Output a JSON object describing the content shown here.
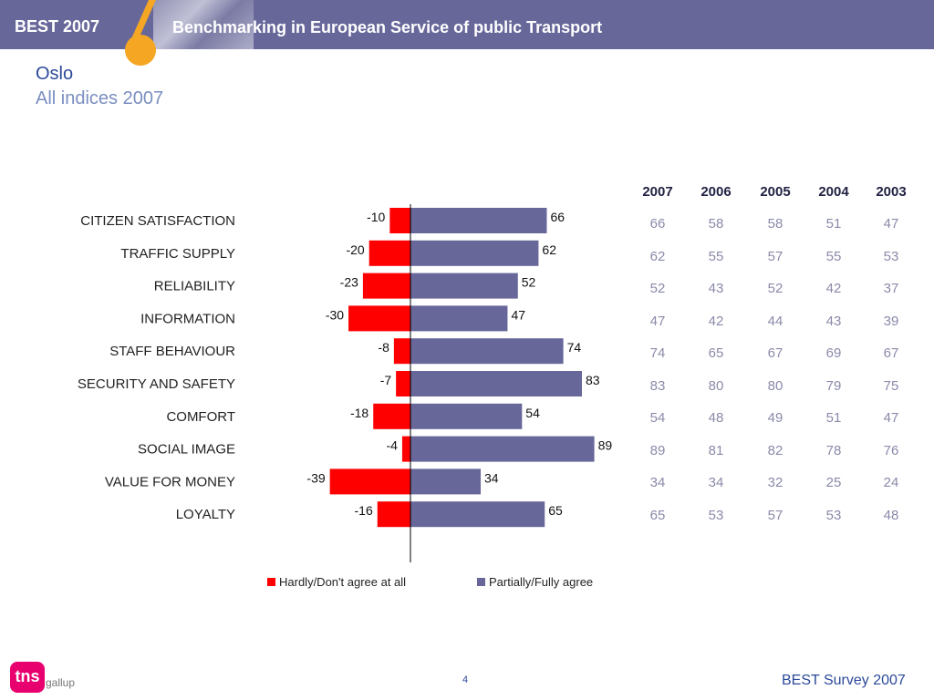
{
  "header": {
    "brand": "BEST 2007",
    "subtitle": "Benchmarking in European Service of public Transport"
  },
  "title": "Oslo",
  "subtitle": "All indices 2007",
  "colors": {
    "negative": "#ff0000",
    "positive": "#67679a",
    "banner": "#67679a",
    "accent": "#f5a623"
  },
  "chart_data": {
    "type": "bar",
    "orientation": "horizontal-diverging",
    "categories": [
      "CITIZEN SATISFACTION",
      "TRAFFIC SUPPLY",
      "RELIABILITY",
      "INFORMATION",
      "STAFF BEHAVIOUR",
      "SECURITY AND SAFETY",
      "COMFORT",
      "SOCIAL IMAGE",
      "VALUE FOR MONEY",
      "LOYALTY"
    ],
    "series": [
      {
        "name": "Hardly/Don't agree at all",
        "color": "#ff0000",
        "values": [
          -10,
          -20,
          -23,
          -30,
          -8,
          -7,
          -18,
          -4,
          -39,
          -16
        ]
      },
      {
        "name": "Partially/Fully agree",
        "color": "#67679a",
        "values": [
          66,
          62,
          52,
          47,
          74,
          83,
          54,
          89,
          34,
          65
        ]
      }
    ],
    "xlim": [
      -40,
      90
    ],
    "legend": "bottom",
    "grid": false
  },
  "table": {
    "headers": [
      "2007",
      "2006",
      "2005",
      "2004",
      "2003"
    ],
    "rows": [
      [
        "66",
        "58",
        "58",
        "51",
        "47"
      ],
      [
        "62",
        "55",
        "57",
        "55",
        "53"
      ],
      [
        "52",
        "43",
        "52",
        "42",
        "37"
      ],
      [
        "47",
        "42",
        "44",
        "43",
        "39"
      ],
      [
        "74",
        "65",
        "67",
        "69",
        "67"
      ],
      [
        "83",
        "80",
        "80",
        "79",
        "75"
      ],
      [
        "54",
        "48",
        "49",
        "51",
        "47"
      ],
      [
        "89",
        "81",
        "82",
        "78",
        "76"
      ],
      [
        "34",
        "34",
        "32",
        "25",
        "24"
      ],
      [
        "65",
        "53",
        "57",
        "53",
        "48"
      ]
    ]
  },
  "footer": {
    "logo": "tns",
    "logo_sub": "gallup",
    "page_number": "4",
    "text": "BEST Survey 2007"
  }
}
